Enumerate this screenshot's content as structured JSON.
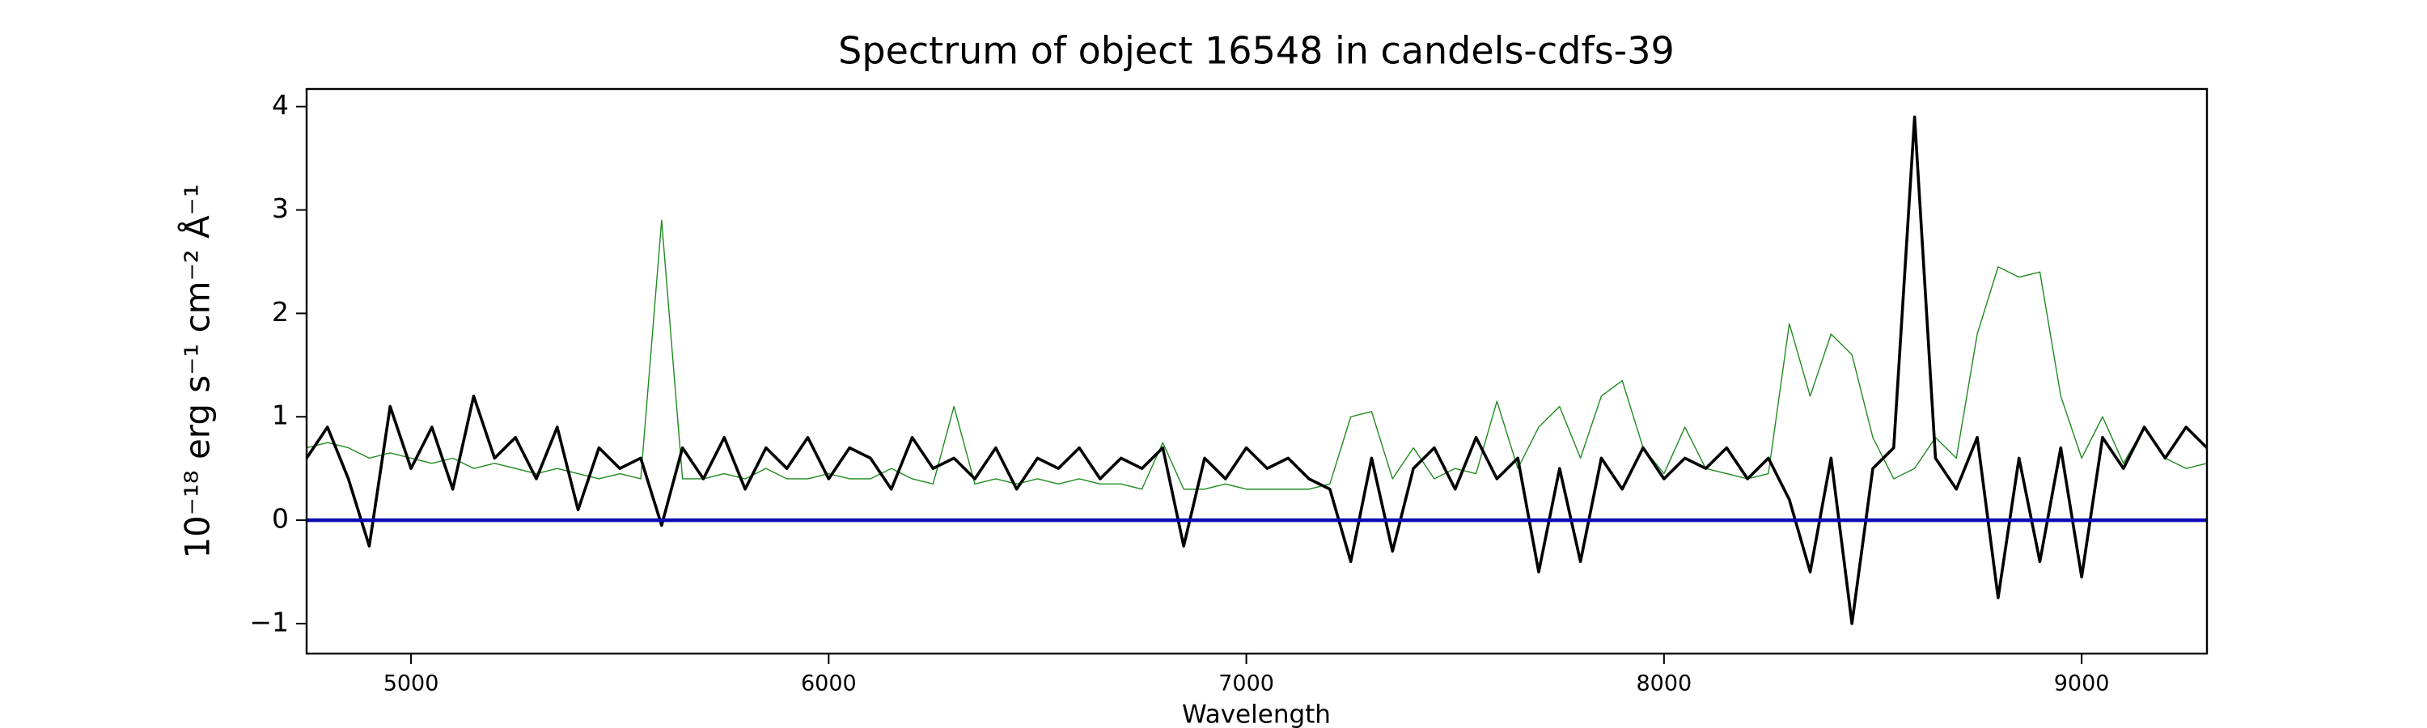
{
  "chart_data": {
    "type": "line",
    "title": "Spectrum of object 16548 in candels-cdfs-39",
    "xlabel": "Wavelength",
    "ylabel": "10⁻¹⁸ erg s⁻¹ cm⁻² Å⁻¹",
    "xlim": [
      4750,
      9300
    ],
    "ylim": [
      -1.29,
      4.17
    ],
    "xticks": [
      5000,
      6000,
      7000,
      8000,
      9000
    ],
    "yticks": [
      {
        "value": -1,
        "label": "−1"
      },
      0,
      1,
      2,
      3,
      4
    ],
    "grid": false,
    "x": [
      4750,
      4800,
      4850,
      4900,
      4950,
      5000,
      5050,
      5100,
      5150,
      5200,
      5250,
      5300,
      5350,
      5400,
      5450,
      5500,
      5550,
      5600,
      5650,
      5700,
      5750,
      5800,
      5850,
      5900,
      5950,
      6000,
      6050,
      6100,
      6150,
      6200,
      6250,
      6300,
      6350,
      6400,
      6450,
      6500,
      6550,
      6600,
      6650,
      6700,
      6750,
      6800,
      6850,
      6900,
      6950,
      7000,
      7050,
      7100,
      7150,
      7200,
      7250,
      7300,
      7350,
      7400,
      7450,
      7500,
      7550,
      7600,
      7650,
      7700,
      7750,
      7800,
      7850,
      7900,
      7950,
      8000,
      8050,
      8100,
      8150,
      8200,
      8250,
      8300,
      8350,
      8400,
      8450,
      8500,
      8550,
      8600,
      8650,
      8700,
      8750,
      8800,
      8850,
      8900,
      8950,
      9000,
      9050,
      9100,
      9150,
      9200,
      9250,
      9300
    ],
    "series": [
      {
        "color": "#1f8b1f",
        "width": 1.4,
        "values": [
          0.7,
          0.75,
          0.7,
          0.6,
          0.65,
          0.6,
          0.55,
          0.6,
          0.5,
          0.55,
          0.5,
          0.45,
          0.5,
          0.45,
          0.4,
          0.45,
          0.4,
          2.9,
          0.4,
          0.4,
          0.45,
          0.4,
          0.5,
          0.4,
          0.4,
          0.45,
          0.4,
          0.4,
          0.5,
          0.4,
          0.35,
          1.1,
          0.35,
          0.4,
          0.35,
          0.4,
          0.35,
          0.4,
          0.35,
          0.35,
          0.3,
          0.75,
          0.3,
          0.3,
          0.35,
          0.3,
          0.3,
          0.3,
          0.3,
          0.35,
          1.0,
          1.05,
          0.4,
          0.7,
          0.4,
          0.5,
          0.45,
          1.15,
          0.5,
          0.9,
          1.1,
          0.6,
          1.2,
          1.35,
          0.7,
          0.45,
          0.9,
          0.5,
          0.45,
          0.4,
          0.45,
          1.9,
          1.2,
          1.8,
          1.6,
          0.8,
          0.4,
          0.5,
          0.8,
          0.6,
          1.8,
          2.45,
          2.35,
          2.4,
          1.2,
          0.6,
          1.0,
          0.55,
          0.9,
          0.6,
          0.5,
          0.55
        ]
      },
      {
        "color": "#000000",
        "width": 3.6,
        "values": [
          0.6,
          0.9,
          0.4,
          -0.25,
          1.1,
          0.5,
          0.9,
          0.3,
          1.2,
          0.6,
          0.8,
          0.4,
          0.9,
          0.1,
          0.7,
          0.5,
          0.6,
          -0.05,
          0.7,
          0.4,
          0.8,
          0.3,
          0.7,
          0.5,
          0.8,
          0.4,
          0.7,
          0.6,
          0.3,
          0.8,
          0.5,
          0.6,
          0.4,
          0.7,
          0.3,
          0.6,
          0.5,
          0.7,
          0.4,
          0.6,
          0.5,
          0.7,
          -0.25,
          0.6,
          0.4,
          0.7,
          0.5,
          0.6,
          0.4,
          0.3,
          -0.4,
          0.6,
          -0.3,
          0.5,
          0.7,
          0.3,
          0.8,
          0.4,
          0.6,
          -0.5,
          0.5,
          -0.4,
          0.6,
          0.3,
          0.7,
          0.4,
          0.6,
          0.5,
          0.7,
          0.4,
          0.6,
          0.2,
          -0.5,
          0.6,
          -1.0,
          0.5,
          0.7,
          3.9,
          0.6,
          0.3,
          0.8,
          -0.75,
          0.6,
          -0.4,
          0.7,
          -0.55,
          0.8,
          0.5,
          0.9,
          0.6,
          0.9,
          0.7
        ]
      },
      {
        "color": "#0a0ab4",
        "width": 4.5,
        "x": [
          4750,
          9300
        ],
        "values": [
          0,
          0
        ]
      }
    ]
  }
}
